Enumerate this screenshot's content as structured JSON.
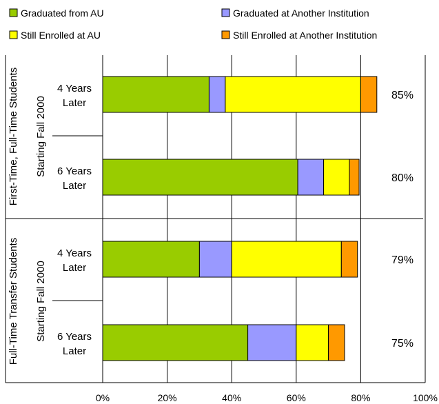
{
  "chart_data": {
    "type": "bar",
    "orientation": "horizontal",
    "stacked": true,
    "legend_position": "top",
    "xlim": [
      0,
      100
    ],
    "x_ticks": [
      "0%",
      "20%",
      "40%",
      "60%",
      "80%",
      "100%"
    ],
    "grid": "vertical gridlines at 20% intervals",
    "series": [
      {
        "name": "Graduated from AU",
        "color": "#99cc00",
        "values": [
          33,
          60.5,
          30,
          45
        ]
      },
      {
        "name": "Graduated at Another Institution",
        "color": "#9999ff",
        "values": [
          5,
          8,
          10,
          15
        ]
      },
      {
        "name": "Still Enrolled at AU",
        "color": "#ffff00",
        "values": [
          42,
          8,
          34,
          10
        ]
      },
      {
        "name": "Still Enrolled at Another Institution",
        "color": "#ff9900",
        "values": [
          5,
          3,
          5,
          5
        ]
      }
    ],
    "groups": [
      {
        "label_line1": "First-Time, Full-Time Students",
        "label_line2": "Starting Fall 2000"
      },
      {
        "label_line1": "Full-Time Transfer Students",
        "label_line2": "Starting Fall 2000"
      }
    ],
    "categories": [
      {
        "line1": "4 Years",
        "line2": "Later",
        "total_label": "85%"
      },
      {
        "line1": "6 Years",
        "line2": "Later",
        "total_label": "80%"
      },
      {
        "line1": "4 Years",
        "line2": "Later",
        "total_label": "79%"
      },
      {
        "line1": "6 Years",
        "line2": "Later",
        "total_label": "75%"
      }
    ]
  }
}
